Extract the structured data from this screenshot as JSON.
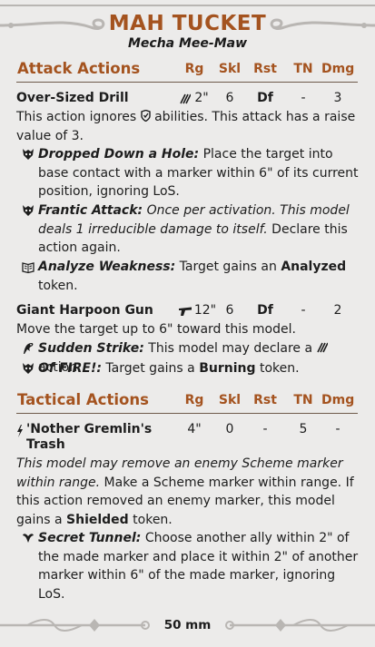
{
  "model": {
    "name": "MAH TUCKET",
    "title": "Mecha Mee-Maw"
  },
  "attack_actions": {
    "header": "Attack Actions",
    "columns": [
      "Rg",
      "Skl",
      "Rst",
      "TN",
      "Dmg"
    ],
    "actions": [
      {
        "name": "Over-Sized Drill",
        "range_icon": "melee-icon",
        "range": "2\"",
        "skill": "6",
        "resist": "Df",
        "tn": "-",
        "damage": "3",
        "text_a": "This action ignores",
        "text_icon": "shield-icon",
        "text_b": "abilities. This attack has a raise value of 3.",
        "triggers": [
          {
            "icon": "mask-icon",
            "name": "Dropped Down a Hole:",
            "text": "Place the target into base contact with a marker within 6\" of its current position, ignoring LoS."
          },
          {
            "icon": "mask-icon",
            "name": "Frantic Attack:",
            "italic_text": "Once per activation. This model deals 1 irreducible damage to itself.",
            "text": "Declare this action again."
          },
          {
            "icon": "book-icon",
            "name": "Analyze Weakness:",
            "text_a": "Target gains an",
            "bold_word": "Analyzed",
            "text_b": "token."
          }
        ]
      },
      {
        "name": "Giant Harpoon Gun",
        "range_icon": "gun-icon",
        "range": "12\"",
        "skill": "6",
        "resist": "Df",
        "tn": "-",
        "damage": "2",
        "text": "Move the target up to 6\" toward this model.",
        "triggers": [
          {
            "icon": "crow-icon",
            "name": "Sudden Strike:",
            "text_a": "This model may declare a",
            "text_icon": "melee-icon",
            "text_b": "action."
          },
          {
            "icon": "mask-icon",
            "name": "Of FIRE!:",
            "text_a": "Target gains a",
            "bold_word": "Burning",
            "text_b": "token."
          }
        ]
      }
    ]
  },
  "tactical_actions": {
    "header": "Tactical Actions",
    "columns": [
      "Rg",
      "Skl",
      "Rst",
      "TN",
      "Dmg"
    ],
    "actions": [
      {
        "icon": "signature-icon",
        "name_line1": "'Nother Gremlin's",
        "name_line2": "Trash",
        "range": "4\"",
        "skill": "0",
        "resist": "-",
        "tn": "5",
        "damage": "-",
        "italic_text": "This model may remove an enemy Scheme marker within range.",
        "text_a": "Make a Scheme marker within range. If this action removed an enemy marker, this model gains a",
        "bold_word": "Shielded",
        "text_b": "token.",
        "triggers": [
          {
            "icon": "ram-icon",
            "name": "Secret Tunnel:",
            "text": "Choose another ally within 2\" of the made marker and place it within 2\" of another marker within 6\" of the made marker, ignoring LoS."
          }
        ]
      }
    ]
  },
  "footer": {
    "base_size": "50 mm"
  },
  "colors": {
    "accent": "#a4531f",
    "background": "#ecebea",
    "ornament": "#b9b6b3"
  }
}
